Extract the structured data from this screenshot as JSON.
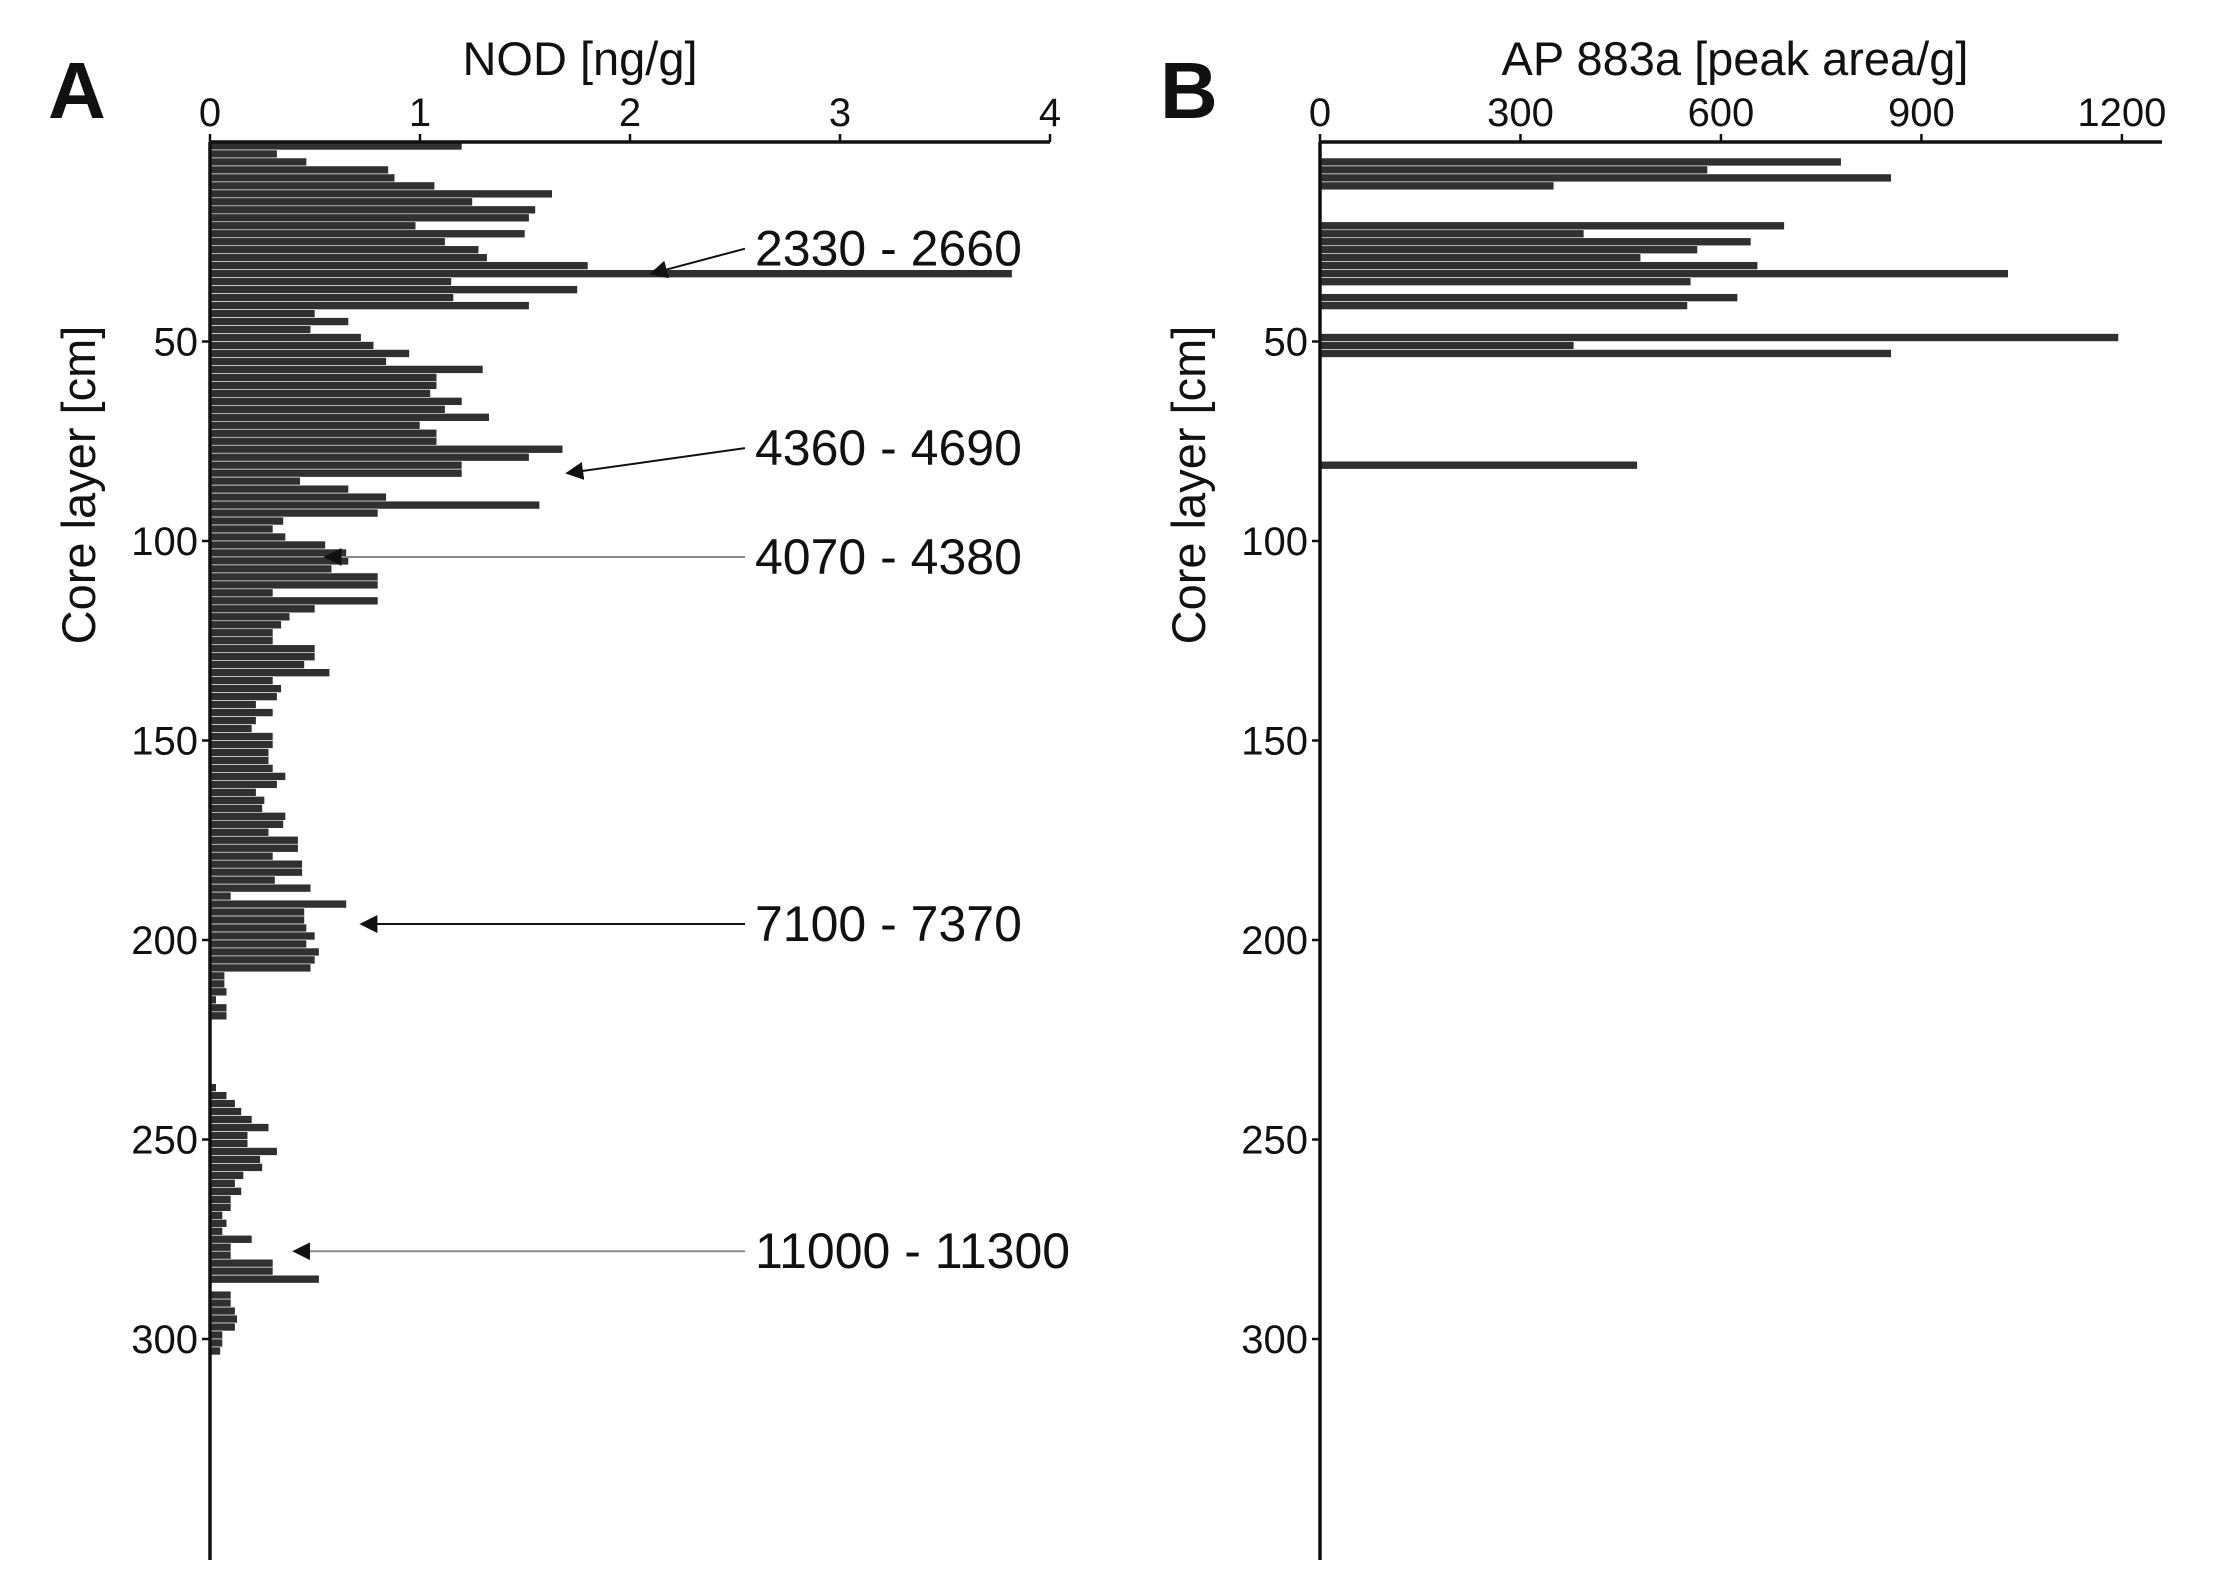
{
  "figure": {
    "panels": [
      "A",
      "B"
    ]
  },
  "colors": {
    "bar_fill": "#303030",
    "axis": "#111111",
    "arrow_dark": "#111111",
    "arrow_light": "#8a8a8a"
  },
  "chart_data": [
    {
      "type": "bar",
      "orientation": "horizontal",
      "panel": "A",
      "title": "",
      "xlabel": "NOD [ng/g]",
      "ylabel": "Core layer [cm]",
      "xlim": [
        0,
        4
      ],
      "ylim": [
        0,
        352
      ],
      "y_inverted": true,
      "x_axis_position": "top",
      "x_ticks": [
        "0",
        "1",
        "2",
        "3",
        "4"
      ],
      "y_ticks": [
        "50",
        "100",
        "150",
        "200",
        "250",
        "300"
      ],
      "bar_thickness": 2,
      "depth": [
        1,
        3,
        5,
        7,
        9,
        11,
        13,
        15,
        17,
        19,
        21,
        23,
        25,
        27,
        29,
        31,
        33,
        35,
        37,
        39,
        41,
        43,
        45,
        47,
        49,
        51,
        53,
        55,
        57,
        59,
        61,
        63,
        65,
        67,
        69,
        71,
        73,
        75,
        77,
        79,
        81,
        83,
        85,
        87,
        89,
        91,
        93,
        95,
        97,
        99,
        101,
        103,
        105,
        107,
        109,
        111,
        113,
        115,
        117,
        119,
        121,
        123,
        125,
        127,
        129,
        131,
        133,
        135,
        137,
        139,
        141,
        143,
        145,
        147,
        149,
        151,
        153,
        155,
        157,
        159,
        161,
        163,
        165,
        167,
        169,
        171,
        173,
        175,
        177,
        179,
        181,
        183,
        185,
        187,
        189,
        191,
        193,
        195,
        197,
        199,
        201,
        203,
        205,
        207,
        209,
        211,
        213,
        215,
        217,
        219,
        237,
        239,
        241,
        243,
        245,
        247,
        249,
        251,
        253,
        255,
        257,
        259,
        261,
        263,
        265,
        267,
        269,
        271,
        273,
        275,
        277,
        279,
        281,
        283,
        285,
        289,
        291,
        293,
        295,
        297,
        299,
        301,
        303
      ],
      "values": [
        1.2,
        0.32,
        0.46,
        0.85,
        0.88,
        1.07,
        1.63,
        1.25,
        1.55,
        1.52,
        0.98,
        1.5,
        1.12,
        1.28,
        1.32,
        1.8,
        3.82,
        1.15,
        1.75,
        1.16,
        1.52,
        0.5,
        0.66,
        0.48,
        0.72,
        0.78,
        0.95,
        0.84,
        1.3,
        1.08,
        1.08,
        1.05,
        1.2,
        1.12,
        1.33,
        1.0,
        1.08,
        1.08,
        1.68,
        1.52,
        1.2,
        1.2,
        0.43,
        0.66,
        0.84,
        1.57,
        0.8,
        0.35,
        0.3,
        0.36,
        0.55,
        0.65,
        0.66,
        0.58,
        0.8,
        0.8,
        0.3,
        0.8,
        0.5,
        0.38,
        0.34,
        0.3,
        0.3,
        0.5,
        0.5,
        0.45,
        0.57,
        0.3,
        0.34,
        0.32,
        0.22,
        0.3,
        0.22,
        0.2,
        0.3,
        0.3,
        0.28,
        0.28,
        0.3,
        0.36,
        0.32,
        0.22,
        0.26,
        0.25,
        0.36,
        0.35,
        0.28,
        0.42,
        0.42,
        0.3,
        0.44,
        0.44,
        0.31,
        0.48,
        0.1,
        0.65,
        0.45,
        0.45,
        0.46,
        0.5,
        0.46,
        0.52,
        0.5,
        0.48,
        0.07,
        0.07,
        0.08,
        0.03,
        0.08,
        0.08,
        0.03,
        0.08,
        0.12,
        0.15,
        0.2,
        0.28,
        0.18,
        0.18,
        0.32,
        0.24,
        0.25,
        0.16,
        0.12,
        0.15,
        0.1,
        0.1,
        0.06,
        0.08,
        0.06,
        0.2,
        0.1,
        0.1,
        0.3,
        0.3,
        0.52,
        0.1,
        0.1,
        0.12,
        0.13,
        0.12,
        0.06,
        0.06,
        0.05
      ]
    },
    {
      "type": "bar",
      "orientation": "horizontal",
      "panel": "B",
      "title": "",
      "xlabel": "AP 883a [peak area/g]",
      "ylabel": "Core layer [cm]",
      "xlim": [
        0,
        1260
      ],
      "ylim": [
        0,
        352
      ],
      "y_inverted": true,
      "x_axis_position": "top",
      "x_ticks": [
        {
          "value": 0,
          "label": "0"
        },
        {
          "value": 300,
          "label": "300"
        },
        {
          "value": 600,
          "label": "600"
        },
        {
          "value": 900,
          "label": "900"
        },
        {
          "value": 1200,
          "label": "1200"
        }
      ],
      "y_ticks": [
        "50",
        "100",
        "150",
        "200",
        "250",
        "300"
      ],
      "bar_thickness": 2,
      "depth": [
        5,
        7,
        9,
        11,
        21,
        23,
        25,
        27,
        29,
        31,
        33,
        35,
        39,
        41,
        49,
        51,
        53,
        81
      ],
      "values": [
        780,
        580,
        855,
        350,
        695,
        395,
        645,
        565,
        480,
        655,
        1030,
        555,
        625,
        550,
        1195,
        380,
        855,
        475
      ]
    }
  ],
  "annotations": [
    {
      "label": "2330 - 2660",
      "depth": 33,
      "arrow_x": 2.1,
      "shade": "dark"
    },
    {
      "label": "4360 - 4690",
      "depth": 83,
      "arrow_x": 1.7,
      "shade": "dark"
    },
    {
      "label": "4070 - 4380",
      "depth": 104,
      "arrow_x": 0.55,
      "shade": "light"
    },
    {
      "label": "7100 - 7370",
      "depth": 196,
      "arrow_x": 0.72,
      "shade": "dark"
    },
    {
      "label": "11000 - 11300",
      "depth": 278,
      "arrow_x": 0.4,
      "shade": "light"
    }
  ]
}
